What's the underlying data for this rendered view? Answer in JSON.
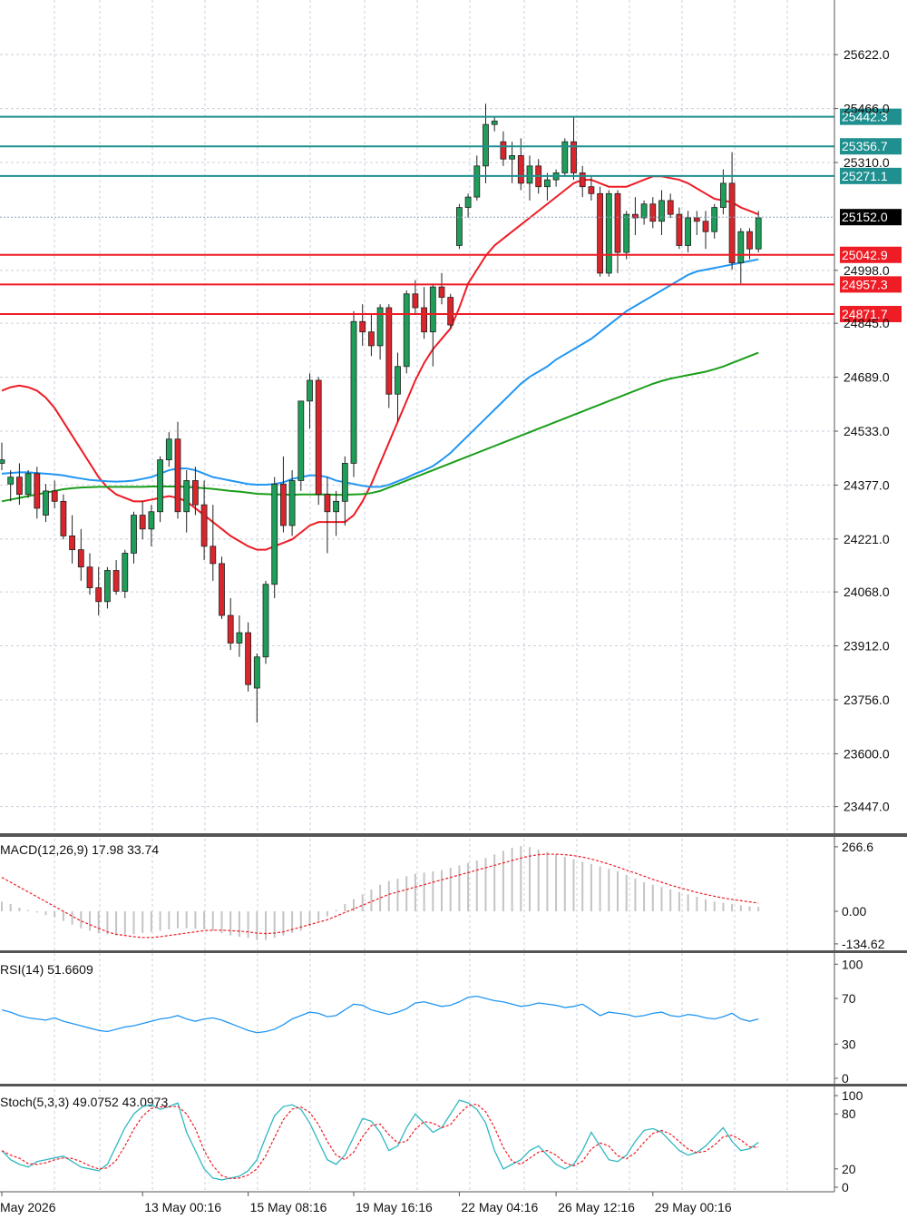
{
  "chart_data": {
    "type": "candlestick",
    "price_axis": {
      "ticks": [
        "25622.0",
        "25466.0",
        "25310.0",
        "24998.0",
        "24845.0",
        "24689.0",
        "24533.0",
        "24377.0",
        "24221.0",
        "24068.0",
        "23912.0",
        "23756.0",
        "23600.0",
        "23447.0"
      ],
      "tick_values": [
        25622,
        25466,
        25310,
        24998,
        24845,
        24689,
        24533,
        24377,
        24221,
        24068,
        23912,
        23756,
        23600,
        23447
      ],
      "range": [
        23370,
        25780
      ]
    },
    "time_axis": {
      "labels": [
        "May 2026",
        "13 May 00:16",
        "15 May 08:16",
        "19 May 16:16",
        "22 May 04:16",
        "26 May 12:16",
        "29 May 00:16"
      ],
      "label_index": [
        0,
        16,
        28,
        40,
        52,
        63,
        74
      ]
    },
    "current_price": {
      "label": "25152.0",
      "value": 25152.0
    },
    "resistance_levels": [
      {
        "label": "25442.3",
        "value": 25442.3
      },
      {
        "label": "25356.7",
        "value": 25356.7
      },
      {
        "label": "25271.1",
        "value": 25271.1
      }
    ],
    "support_levels": [
      {
        "label": "25042.9",
        "value": 25042.9
      },
      {
        "label": "24957.3",
        "value": 24957.3
      },
      {
        "label": "24871.7",
        "value": 24871.7
      }
    ],
    "candles": [
      [
        24440,
        24500,
        24420,
        24450
      ],
      [
        24380,
        24420,
        24330,
        24400
      ],
      [
        24400,
        24440,
        24320,
        24350
      ],
      [
        24350,
        24420,
        24340,
        24410
      ],
      [
        24410,
        24430,
        24280,
        24310
      ],
      [
        24290,
        24380,
        24270,
        24360
      ],
      [
        24360,
        24390,
        24310,
        24330
      ],
      [
        24330,
        24350,
        24220,
        24230
      ],
      [
        24230,
        24290,
        24150,
        24190
      ],
      [
        24190,
        24250,
        24100,
        24140
      ],
      [
        24140,
        24180,
        24060,
        24080
      ],
      [
        24080,
        24140,
        24000,
        24040
      ],
      [
        24040,
        24140,
        24020,
        24130
      ],
      [
        24130,
        24160,
        24060,
        24070
      ],
      [
        24070,
        24190,
        24050,
        24180
      ],
      [
        24180,
        24300,
        24150,
        24290
      ],
      [
        24290,
        24330,
        24220,
        24250
      ],
      [
        24250,
        24320,
        24200,
        24300
      ],
      [
        24300,
        24460,
        24270,
        24450
      ],
      [
        24450,
        24530,
        24430,
        24510
      ],
      [
        24510,
        24560,
        24280,
        24300
      ],
      [
        24300,
        24420,
        24240,
        24390
      ],
      [
        24390,
        24430,
        24290,
        24320
      ],
      [
        24320,
        24390,
        24160,
        24200
      ],
      [
        24200,
        24320,
        24100,
        24150
      ],
      [
        24150,
        24170,
        23990,
        24000
      ],
      [
        24000,
        24050,
        23900,
        23920
      ],
      [
        23920,
        24000,
        23880,
        23950
      ],
      [
        23950,
        23980,
        23780,
        23800
      ],
      [
        23790,
        23890,
        23690,
        23880
      ],
      [
        23880,
        24100,
        23860,
        24090
      ],
      [
        24090,
        24400,
        24050,
        24380
      ],
      [
        24380,
        24460,
        24240,
        24260
      ],
      [
        24260,
        24420,
        24230,
        24390
      ],
      [
        24390,
        24620,
        24360,
        24620
      ],
      [
        24620,
        24700,
        24540,
        24680
      ],
      [
        24680,
        24690,
        24320,
        24350
      ],
      [
        24350,
        24400,
        24180,
        24300
      ],
      [
        24300,
        24360,
        24230,
        24330
      ],
      [
        24330,
        24460,
        24260,
        24440
      ],
      [
        24440,
        24880,
        24400,
        24850
      ],
      [
        24850,
        24900,
        24780,
        24820
      ],
      [
        24820,
        24870,
        24750,
        24780
      ],
      [
        24780,
        24900,
        24740,
        24890
      ],
      [
        24890,
        24900,
        24600,
        24640
      ],
      [
        24640,
        24760,
        24560,
        24720
      ],
      [
        24720,
        24940,
        24700,
        24930
      ],
      [
        24930,
        24970,
        24870,
        24890
      ],
      [
        24890,
        24950,
        24800,
        24820
      ],
      [
        24820,
        24960,
        24720,
        24950
      ],
      [
        24950,
        24990,
        24900,
        24920
      ],
      [
        24920,
        24930,
        24830,
        24840
      ],
      [
        25070,
        25190,
        25060,
        25180
      ],
      [
        25180,
        25220,
        25150,
        25210
      ],
      [
        25210,
        25330,
        25200,
        25300
      ],
      [
        25300,
        25480,
        25250,
        25420
      ],
      [
        25420,
        25440,
        25400,
        25430
      ],
      [
        25370,
        25400,
        25300,
        25320
      ],
      [
        25320,
        25370,
        25250,
        25330
      ],
      [
        25330,
        25380,
        25230,
        25250
      ],
      [
        25250,
        25330,
        25200,
        25300
      ],
      [
        25300,
        25320,
        25220,
        25240
      ],
      [
        25240,
        25280,
        25200,
        25260
      ],
      [
        25260,
        25290,
        25240,
        25280
      ],
      [
        25280,
        25380,
        25270,
        25370
      ],
      [
        25370,
        25440,
        25260,
        25280
      ],
      [
        25280,
        25300,
        25210,
        25240
      ],
      [
        25240,
        25270,
        25200,
        25220
      ],
      [
        25220,
        25240,
        24980,
        24990
      ],
      [
        24990,
        25230,
        24980,
        25220
      ],
      [
        25220,
        25230,
        24990,
        25050
      ],
      [
        25050,
        25170,
        25030,
        25160
      ],
      [
        25160,
        25210,
        25100,
        25150
      ],
      [
        25150,
        25200,
        25130,
        25190
      ],
      [
        25190,
        25210,
        25120,
        25140
      ],
      [
        25140,
        25230,
        25100,
        25200
      ],
      [
        25200,
        25220,
        25150,
        25160
      ],
      [
        25160,
        25180,
        25060,
        25070
      ],
      [
        25070,
        25170,
        25050,
        25150
      ],
      [
        25150,
        25170,
        25100,
        25140
      ],
      [
        25140,
        25170,
        25060,
        25110
      ],
      [
        25110,
        25190,
        25090,
        25180
      ],
      [
        25180,
        25290,
        25160,
        25250
      ],
      [
        25250,
        25340,
        25000,
        25020
      ],
      [
        25020,
        25120,
        24960,
        25110
      ],
      [
        25110,
        25120,
        25030,
        25060
      ],
      [
        25060,
        25170,
        25050,
        25150
      ]
    ],
    "moving_averages": [
      {
        "color": "#ee1c25",
        "values": [
          24650,
          24660,
          24665,
          24660,
          24650,
          24630,
          24600,
          24560,
          24520,
          24480,
          24440,
          24400,
          24370,
          24350,
          24340,
          24330,
          24330,
          24335,
          24340,
          24345,
          24340,
          24330,
          24310,
          24290,
          24270,
          24250,
          24230,
          24215,
          24200,
          24190,
          24190,
          24200,
          24210,
          24220,
          24240,
          24260,
          24270,
          24270,
          24270,
          24270,
          24290,
          24330,
          24380,
          24440,
          24500,
          24560,
          24620,
          24680,
          24730,
          24770,
          24800,
          24830,
          24890,
          24960,
          25000,
          25040,
          25070,
          25090,
          25110,
          25130,
          25150,
          25170,
          25190,
          25210,
          25230,
          25250,
          25260,
          25260,
          25250,
          25240,
          25240,
          25240,
          25250,
          25260,
          25270,
          25270,
          25265,
          25260,
          25250,
          25235,
          25220,
          25205,
          25200,
          25195,
          25180,
          25170,
          25160
        ]
      },
      {
        "color": "#2196f3",
        "values": [
          24410,
          24412,
          24414,
          24414,
          24412,
          24410,
          24408,
          24405,
          24400,
          24396,
          24392,
          24390,
          24388,
          24387,
          24388,
          24390,
          24395,
          24400,
          24410,
          24420,
          24425,
          24425,
          24420,
          24410,
          24400,
          24395,
          24390,
          24385,
          24380,
          24378,
          24378,
          24380,
          24385,
          24395,
          24400,
          24405,
          24405,
          24400,
          24390,
          24385,
          24380,
          24375,
          24372,
          24372,
          24378,
          24388,
          24398,
          24410,
          24420,
          24432,
          24450,
          24470,
          24495,
          24520,
          24545,
          24570,
          24595,
          24620,
          24645,
          24670,
          24690,
          24705,
          24720,
          24740,
          24755,
          24770,
          24785,
          24800,
          24820,
          24840,
          24860,
          24880,
          24895,
          24910,
          24925,
          24940,
          24955,
          24970,
          24985,
          24995,
          25000,
          25005,
          25010,
          25015,
          25020,
          25025,
          25030
        ]
      },
      {
        "color": "#1a9e1a",
        "values": [
          24330,
          24335,
          24340,
          24345,
          24350,
          24355,
          24360,
          24365,
          24368,
          24370,
          24371,
          24372,
          24372,
          24372,
          24372,
          24372,
          24372,
          24373,
          24373,
          24373,
          24373,
          24372,
          24370,
          24368,
          24366,
          24363,
          24360,
          24358,
          24355,
          24352,
          24351,
          24350,
          24350,
          24349,
          24350,
          24350,
          24350,
          24350,
          24349,
          24349,
          24350,
          24351,
          24354,
          24360,
          24370,
          24380,
          24390,
          24400,
          24410,
          24420,
          24430,
          24440,
          24450,
          24460,
          24470,
          24480,
          24490,
          24500,
          24510,
          24520,
          24530,
          24540,
          24550,
          24560,
          24570,
          24580,
          24590,
          24600,
          24610,
          24620,
          24630,
          24640,
          24650,
          24660,
          24670,
          24678,
          24685,
          24690,
          24695,
          24700,
          24705,
          24712,
          24720,
          24730,
          24740,
          24750,
          24760
        ]
      }
    ],
    "macd": {
      "label": "MACD(12,26,9) 17.98 33.74",
      "ticks": [
        "266.6",
        "0.00",
        "-134.62"
      ],
      "tick_values": [
        266.6,
        0,
        -134.62
      ],
      "histogram": [
        40,
        30,
        15,
        5,
        -5,
        -15,
        -25,
        -40,
        -55,
        -70,
        -80,
        -90,
        -95,
        -100,
        -100,
        -95,
        -90,
        -85,
        -80,
        -75,
        -70,
        -70,
        -72,
        -75,
        -80,
        -90,
        -100,
        -105,
        -110,
        -120,
        -118,
        -110,
        -100,
        -90,
        -80,
        -60,
        -40,
        -20,
        5,
        30,
        50,
        70,
        90,
        110,
        125,
        135,
        145,
        155,
        160,
        165,
        170,
        180,
        190,
        200,
        210,
        220,
        235,
        250,
        262,
        270,
        265,
        255,
        245,
        235,
        225,
        215,
        205,
        195,
        185,
        175,
        165,
        150,
        135,
        120,
        110,
        100,
        90,
        80,
        70,
        60,
        50,
        40,
        35,
        30,
        25,
        20,
        18
      ],
      "signal": [
        140,
        120,
        100,
        80,
        60,
        40,
        20,
        0,
        -20,
        -40,
        -55,
        -70,
        -85,
        -95,
        -100,
        -105,
        -108,
        -108,
        -105,
        -100,
        -95,
        -90,
        -85,
        -80,
        -78,
        -78,
        -80,
        -82,
        -85,
        -90,
        -92,
        -90,
        -85,
        -75,
        -65,
        -55,
        -45,
        -35,
        -20,
        -5,
        10,
        25,
        40,
        55,
        70,
        80,
        90,
        100,
        110,
        120,
        130,
        140,
        150,
        160,
        170,
        180,
        190,
        200,
        210,
        220,
        228,
        234,
        236,
        236,
        234,
        230,
        224,
        216,
        206,
        195,
        183,
        170,
        158,
        145,
        132,
        120,
        108,
        98,
        88,
        78,
        70,
        62,
        55,
        49,
        44,
        39,
        34
      ]
    },
    "rsi": {
      "label": "RSI(14) 51.6609",
      "ticks": [
        "100",
        "70",
        "30",
        "0"
      ],
      "tick_values": [
        100,
        70,
        30,
        0
      ],
      "values": [
        60,
        58,
        55,
        53,
        52,
        51,
        53,
        50,
        48,
        46,
        44,
        42,
        41,
        43,
        45,
        46,
        48,
        50,
        52,
        53,
        55,
        52,
        50,
        52,
        53,
        51,
        48,
        45,
        42,
        40,
        41,
        43,
        47,
        52,
        55,
        58,
        57,
        54,
        55,
        60,
        65,
        64,
        60,
        58,
        56,
        58,
        61,
        66,
        67,
        65,
        63,
        64,
        67,
        71,
        72,
        70,
        68,
        67,
        65,
        63,
        64,
        66,
        65,
        64,
        62,
        63,
        65,
        60,
        55,
        58,
        57,
        56,
        54,
        55,
        57,
        58,
        55,
        54,
        56,
        55,
        53,
        52,
        54,
        57,
        52,
        50,
        52
      ]
    },
    "stoch": {
      "label": "Stoch(5,3,3) 49.0752 43.0973",
      "ticks": [
        "100",
        "80",
        "20",
        "0"
      ],
      "tick_values": [
        100,
        80,
        20,
        0
      ],
      "k": [
        40,
        30,
        25,
        22,
        28,
        30,
        32,
        34,
        28,
        22,
        20,
        18,
        25,
        45,
        65,
        80,
        88,
        90,
        85,
        88,
        92,
        60,
        40,
        20,
        10,
        8,
        10,
        12,
        18,
        30,
        55,
        78,
        88,
        90,
        85,
        70,
        50,
        30,
        25,
        35,
        55,
        75,
        72,
        60,
        40,
        45,
        65,
        80,
        70,
        60,
        65,
        80,
        95,
        92,
        85,
        70,
        40,
        20,
        25,
        30,
        40,
        45,
        35,
        25,
        20,
        25,
        40,
        60,
        45,
        30,
        28,
        35,
        50,
        62,
        64,
        60,
        50,
        40,
        35,
        38,
        45,
        55,
        65,
        50,
        40,
        42,
        49
      ]
    }
  }
}
